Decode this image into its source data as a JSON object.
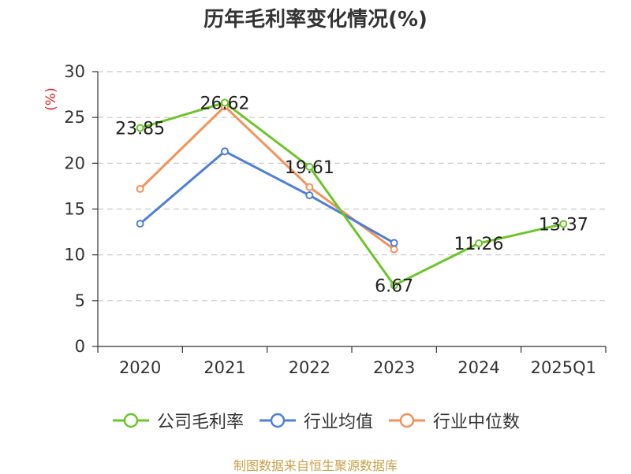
{
  "chart_data": {
    "type": "line",
    "title": "历年毛利率变化情况(%)",
    "ylabel": "(%)",
    "categories": [
      "2020",
      "2021",
      "2022",
      "2023",
      "2024",
      "2025Q1"
    ],
    "ylim": [
      0,
      30
    ],
    "yticks": [
      0,
      5,
      10,
      15,
      20,
      25,
      30
    ],
    "grid": true,
    "legend_position": "bottom",
    "series": [
      {
        "name": "公司毛利率",
        "color": "#6cc52a",
        "values": [
          23.85,
          26.62,
          19.61,
          6.67,
          11.26,
          13.37
        ],
        "labels": [
          "23.85",
          "26.62",
          "19.61",
          "6.67",
          "11.26",
          "13.37"
        ]
      },
      {
        "name": "行业均值",
        "color": "#4e7fd9",
        "values": [
          13.4,
          21.3,
          16.5,
          11.3,
          null,
          null
        ]
      },
      {
        "name": "行业中位数",
        "color": "#f49157",
        "values": [
          17.2,
          26.2,
          17.4,
          10.6,
          null,
          null
        ]
      }
    ]
  },
  "footer": "制图数据来自恒生聚源数据库"
}
